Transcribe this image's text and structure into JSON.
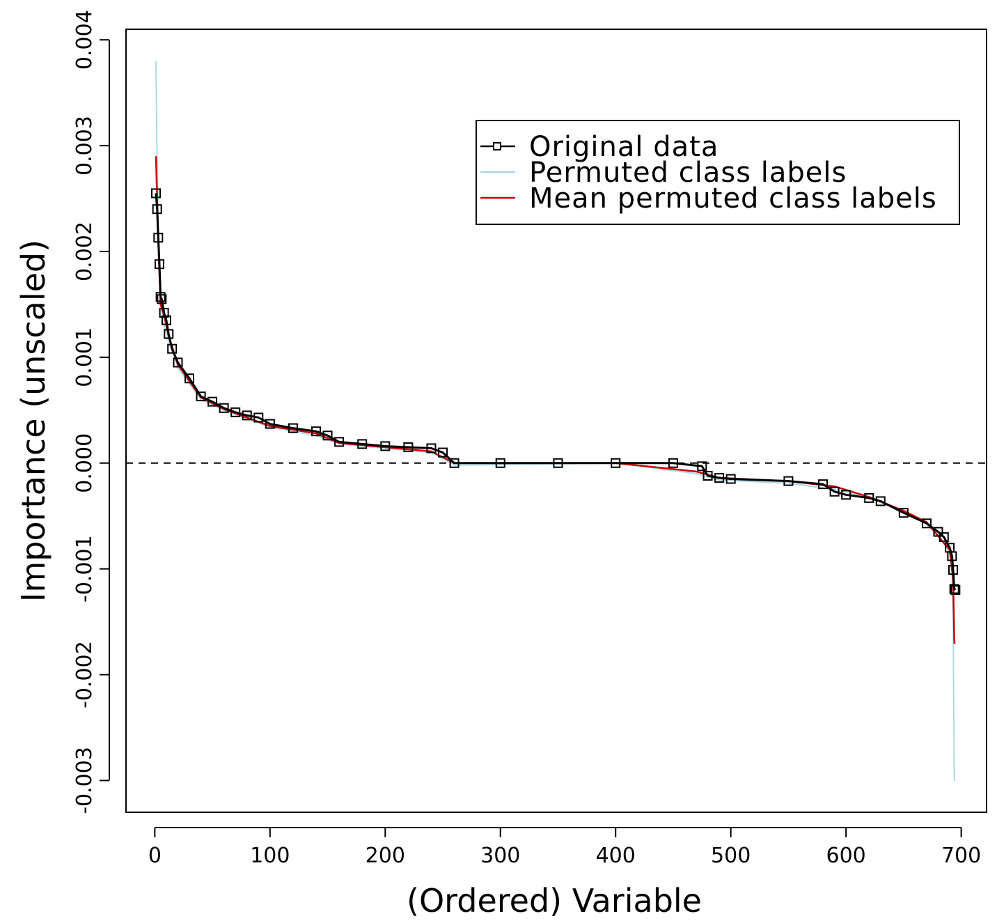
{
  "chart_data": {
    "type": "line",
    "xlabel": "(Ordered) Variable",
    "ylabel": "Importance (unscaled)",
    "xlim": [
      -25,
      722
    ],
    "ylim": [
      -0.0033,
      0.0041
    ],
    "xticks": [
      0,
      100,
      200,
      300,
      400,
      500,
      600,
      700
    ],
    "xtick_labels": [
      "0",
      "100",
      "200",
      "300",
      "400",
      "500",
      "600",
      "700"
    ],
    "yticks": [
      -0.003,
      -0.002,
      -0.001,
      0.0,
      0.001,
      0.002,
      0.003,
      0.004
    ],
    "ytick_labels": [
      "-0.003",
      "-0.002",
      "-0.001",
      "0.000",
      "0.001",
      "0.002",
      "0.003",
      "0.004"
    ],
    "grid": false,
    "legend_position": "top-right",
    "reference_line": {
      "y": 0.0,
      "style": "dashed"
    },
    "series": [
      {
        "name": "Original data",
        "color": "#000000",
        "marker": "open-square",
        "x": [
          1,
          2,
          3,
          4,
          5,
          6,
          8,
          10,
          12,
          15,
          20,
          30,
          40,
          50,
          60,
          70,
          80,
          90,
          100,
          120,
          140,
          150,
          160,
          180,
          200,
          220,
          240,
          250,
          260,
          300,
          350,
          400,
          450,
          475,
          480,
          490,
          500,
          550,
          580,
          590,
          600,
          620,
          630,
          650,
          670,
          680,
          685,
          690,
          692,
          693,
          694,
          695
        ],
        "y": [
          0.00255,
          0.0024,
          0.00213,
          0.00188,
          0.00157,
          0.00155,
          0.00142,
          0.00135,
          0.00122,
          0.00108,
          0.00095,
          0.0008,
          0.00063,
          0.00058,
          0.00052,
          0.00048,
          0.00045,
          0.00043,
          0.00037,
          0.00033,
          0.0003,
          0.00026,
          0.0002,
          0.00018,
          0.00016,
          0.00015,
          0.00014,
          0.0001,
          0.0,
          0.0,
          0.0,
          0.0,
          0.0,
          -3e-05,
          -0.00012,
          -0.00014,
          -0.00015,
          -0.00017,
          -0.0002,
          -0.00027,
          -0.0003,
          -0.00033,
          -0.00036,
          -0.00047,
          -0.00057,
          -0.00065,
          -0.0007,
          -0.0008,
          -0.00088,
          -0.00101,
          -0.00119,
          -0.0012
        ]
      },
      {
        "name": "Permuted class labels",
        "color": "#add8e6",
        "x": [
          1,
          2,
          3,
          5,
          8,
          12,
          20,
          30,
          40,
          60,
          80,
          100,
          140,
          160,
          200,
          240,
          260,
          400,
          470,
          490,
          550,
          590,
          620,
          650,
          670,
          680,
          690,
          692,
          693,
          694,
          695
        ],
        "y": [
          0.0038,
          0.0028,
          0.0022,
          0.0015,
          0.0013,
          0.00115,
          0.0009,
          0.00075,
          0.0006,
          0.0005,
          0.00042,
          0.00034,
          0.00026,
          0.00018,
          0.00014,
          0.0001,
          -2e-05,
          0.0,
          -0.0001,
          -0.00016,
          -0.00019,
          -0.00025,
          -0.00033,
          -0.00045,
          -0.00058,
          -0.00068,
          -0.00085,
          -0.001,
          -0.0015,
          -0.003,
          -0.003
        ]
      },
      {
        "name": "Mean permuted class labels",
        "color": "#cc0000",
        "x": [
          1,
          2,
          3,
          5,
          8,
          12,
          20,
          40,
          60,
          80,
          100,
          140,
          160,
          200,
          240,
          260,
          400,
          470,
          490,
          550,
          590,
          620,
          650,
          670,
          690,
          693,
          694,
          695
        ],
        "y": [
          0.0029,
          0.0025,
          0.0021,
          0.0015,
          0.0014,
          0.0012,
          0.00093,
          0.00062,
          0.00051,
          0.00043,
          0.00035,
          0.00028,
          0.00019,
          0.00015,
          0.00011,
          0.0,
          0.0,
          -8e-05,
          -0.00014,
          -0.00017,
          -0.00022,
          -0.00032,
          -0.00045,
          -0.00056,
          -0.00082,
          -0.0011,
          -0.0017,
          -0.0017
        ]
      }
    ]
  }
}
